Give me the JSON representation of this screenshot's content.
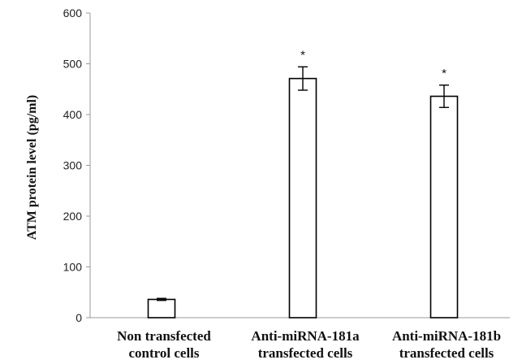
{
  "chart_data": {
    "type": "bar",
    "categories": [
      [
        "Non transfected",
        "control cells"
      ],
      [
        "Anti-miRNA-181a",
        "transfected cells"
      ],
      [
        "Anti-miRNA-181b",
        "transfected cells"
      ]
    ],
    "values": [
      36,
      471,
      436
    ],
    "errors": [
      2,
      23,
      22
    ],
    "annotations": [
      "",
      "*",
      "*"
    ],
    "ylabel": "ATM protein level (pg/ml)",
    "xlabel": "",
    "ylim": [
      0,
      600
    ],
    "yticks": [
      0,
      100,
      200,
      300,
      400,
      500,
      600
    ],
    "grid": false,
    "bar_fill": "#ffffff",
    "bar_stroke": "#000000"
  }
}
